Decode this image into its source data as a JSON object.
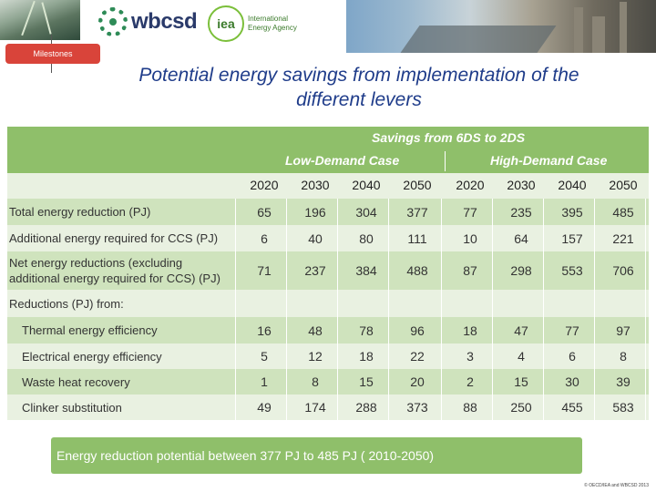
{
  "header": {
    "milestones_label": "Milestones",
    "wbcsd_label": "wbcsd",
    "iea_logo_text": "iea",
    "iea_name": [
      "International",
      "Energy Agency"
    ]
  },
  "title": [
    "Potential energy savings from implementation of the",
    "different levers"
  ],
  "table": {
    "top_header": "Savings from 6DS to 2DS",
    "cases": [
      "Low-Demand Case",
      "High-Demand Case"
    ],
    "years": [
      "2020",
      "2030",
      "2040",
      "2050",
      "2020",
      "2030",
      "2040",
      "2050"
    ],
    "rows": [
      {
        "label": [
          "Total energy reduction (PJ)"
        ],
        "values": [
          "65",
          "196",
          "304",
          "377",
          "77",
          "235",
          "395",
          "485"
        ]
      },
      {
        "label": [
          "Additional energy required for CCS (PJ)"
        ],
        "values": [
          "6",
          "40",
          "80",
          "111",
          "10",
          "64",
          "157",
          "221"
        ]
      },
      {
        "label": [
          "Net energy reductions (excluding",
          "additional energy required for CCS) (PJ)"
        ],
        "values": [
          "71",
          "237",
          "384",
          "488",
          "87",
          "298",
          "553",
          "706"
        ]
      },
      {
        "label": [
          "Reductions (PJ) from:"
        ],
        "values": [
          "",
          "",
          "",
          "",
          "",
          "",
          "",
          ""
        ]
      },
      {
        "label": [
          "Thermal energy efficiency"
        ],
        "values": [
          "16",
          "48",
          "78",
          "96",
          "18",
          "47",
          "77",
          "97"
        ]
      },
      {
        "label": [
          "Electrical energy efficiency"
        ],
        "values": [
          "5",
          "12",
          "18",
          "22",
          "3",
          "4",
          "6",
          "8"
        ]
      },
      {
        "label": [
          "Waste heat recovery"
        ],
        "values": [
          "1",
          "8",
          "15",
          "20",
          "2",
          "15",
          "30",
          "39"
        ]
      },
      {
        "label": [
          "Clinker substitution"
        ],
        "values": [
          "49",
          "174",
          "288",
          "373",
          "88",
          "250",
          "455",
          "583"
        ]
      }
    ]
  },
  "summary": "Energy reduction potential between 377 PJ to 485 PJ ( 2010-2050)",
  "copyright": "© OECD/IEA and WBCSD 2013"
}
